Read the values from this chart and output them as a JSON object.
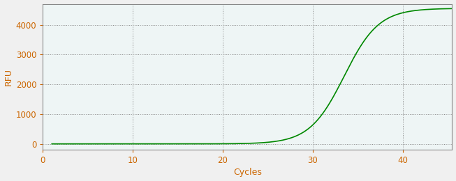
{
  "xlabel": "Cycles",
  "ylabel": "RFU",
  "line_color": "#008800",
  "bg_color": "#f0f0f0",
  "plot_bg_color": "#eef5f5",
  "grid_color": "#888888",
  "tick_color": "#cc6600",
  "label_color": "#444444",
  "spine_color": "#888888",
  "xlim": [
    0,
    45.5
  ],
  "ylim": [
    -200,
    4700
  ],
  "xticks": [
    0,
    10,
    20,
    30,
    40
  ],
  "yticks": [
    0,
    1000,
    2000,
    3000,
    4000
  ],
  "sigmoid_L": 4550,
  "sigmoid_k": 0.52,
  "sigmoid_x0": 33.5,
  "x_start": 1,
  "x_end": 45.5,
  "num_points": 1000
}
